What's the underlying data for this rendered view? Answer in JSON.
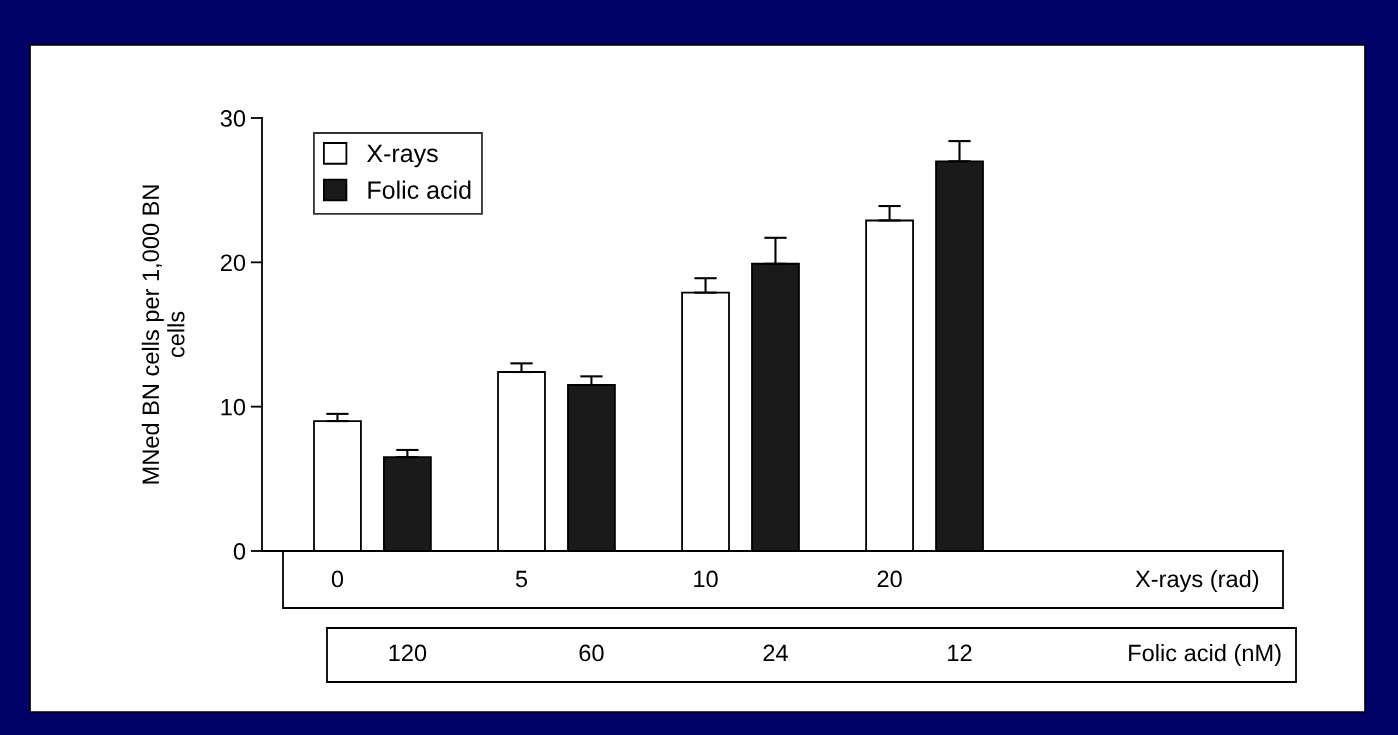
{
  "chart_data": {
    "type": "bar",
    "categories": [
      "0",
      "5",
      "10",
      "20"
    ],
    "ylabel": "MNed BN cells per 1,000 BN\ncells",
    "series": [
      {
        "name": "X-rays",
        "color": "#ffffff",
        "values": [
          9.0,
          12.4,
          17.9,
          22.9
        ],
        "errors": [
          [
            9.0,
            9.5
          ],
          [
            12.4,
            13.0
          ],
          [
            17.9,
            18.9
          ],
          [
            22.9,
            23.9
          ]
        ]
      },
      {
        "name": "Folic acid",
        "color": "#1a1a1a",
        "values": [
          6.5,
          11.5,
          19.9,
          27.0
        ],
        "errors": [
          [
            6.5,
            7.0
          ],
          [
            11.5,
            12.1
          ],
          [
            19.9,
            21.7
          ],
          [
            27.0,
            28.4
          ]
        ]
      }
    ],
    "annotations": [
      "X-rays (rad)",
      "120",
      "60",
      "24",
      "12",
      "Folic acid (nM)"
    ],
    "ylim": [
      0,
      30
    ],
    "yticks": [
      0,
      10,
      20,
      30
    ],
    "legend": "top left"
  }
}
